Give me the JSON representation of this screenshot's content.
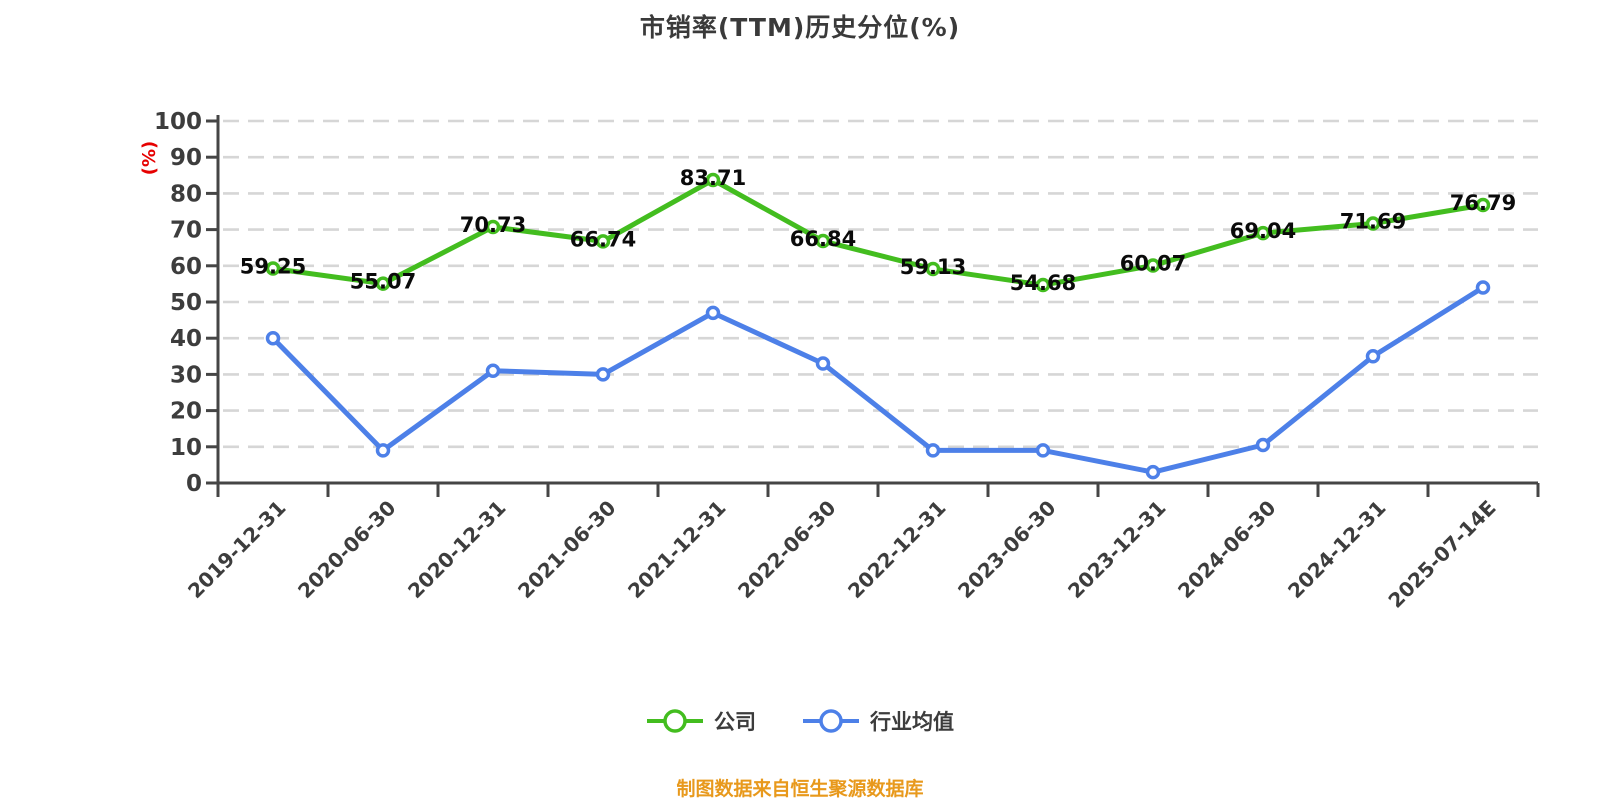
{
  "title": "市销率(TTM)历史分位(%)",
  "legend": {
    "items": [
      {
        "label": "公司"
      },
      {
        "label": "行业均值"
      }
    ]
  },
  "source_note": "制图数据来自恒生聚源数据库",
  "colors": {
    "company_line": "#43bd1f",
    "industry_line": "#4d80e8",
    "marker_fill": "#ffffff",
    "axis": "#454545",
    "grid": "#d6d6d6",
    "tick_text": "#3d3d3d",
    "data_label": "#0a0a0a",
    "ylabel_text": "#e60000",
    "caption_text": "#e8991c",
    "title_text": "#3a3a3a"
  },
  "chart_data": {
    "type": "line",
    "title": "市销率(TTM)历史分位(%)",
    "xlabel": "",
    "ylabel": "(%)",
    "ylim": [
      0,
      100
    ],
    "ytick_step": 10,
    "grid": "horizontal-dashed",
    "legend_position": "bottom",
    "categories": [
      "2019-12-31",
      "2020-06-30",
      "2020-12-31",
      "2021-06-30",
      "2021-12-31",
      "2022-06-30",
      "2022-12-31",
      "2023-06-30",
      "2023-12-31",
      "2024-06-30",
      "2024-12-31",
      "2025-07-14E"
    ],
    "series": [
      {
        "name": "公司",
        "color": "#43bd1f",
        "data_labels": true,
        "values": [
          59.25,
          55.07,
          70.73,
          66.74,
          83.71,
          66.84,
          59.13,
          54.68,
          60.07,
          69.04,
          71.69,
          76.79
        ]
      },
      {
        "name": "行业均值",
        "color": "#4d80e8",
        "data_labels": false,
        "values": [
          40,
          9,
          31,
          30,
          47,
          33,
          9,
          9,
          3,
          10.5,
          35,
          54
        ]
      }
    ],
    "source_note": "制图数据来自恒生聚源数据库"
  }
}
